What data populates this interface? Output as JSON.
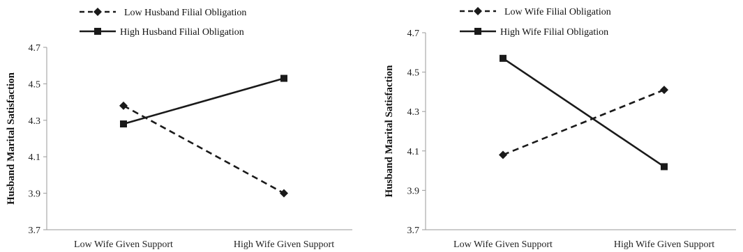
{
  "chart_data": [
    {
      "type": "line",
      "title": "",
      "xlabel": "",
      "ylabel": "Husband Marital Satisfaction",
      "categories": [
        "Low Wife Given Support",
        "High Wife Given Support"
      ],
      "ylim": [
        3.7,
        4.7
      ],
      "yticks": [
        "3.7",
        "3.9",
        "4.1",
        "4.3",
        "4.5",
        "4.7"
      ],
      "legend_position": "top",
      "grid": false,
      "series": [
        {
          "name": "Low Husband Filial Obligation",
          "values": [
            4.38,
            3.9
          ],
          "style": "dashed",
          "marker": "diamond",
          "color": "#1a1a1a"
        },
        {
          "name": "High Husband Filial Obligation",
          "values": [
            4.28,
            4.53
          ],
          "style": "solid",
          "marker": "square",
          "color": "#1a1a1a"
        }
      ]
    },
    {
      "type": "line",
      "title": "",
      "xlabel": "",
      "ylabel": "Husband Marital Satisfaction",
      "categories": [
        "Low Wife Given Support",
        "High Wife Given Support"
      ],
      "ylim": [
        3.7,
        4.7
      ],
      "yticks": [
        "3.7",
        "3.9",
        "4.1",
        "4.3",
        "4.5",
        "4.7"
      ],
      "legend_position": "top",
      "grid": false,
      "series": [
        {
          "name": "Low Wife Filial Obligation",
          "values": [
            4.08,
            4.41
          ],
          "style": "dashed",
          "marker": "diamond",
          "color": "#1a1a1a"
        },
        {
          "name": "High Wife Filial Obligation",
          "values": [
            4.57,
            4.02
          ],
          "style": "solid",
          "marker": "square",
          "color": "#1a1a1a"
        }
      ]
    }
  ]
}
